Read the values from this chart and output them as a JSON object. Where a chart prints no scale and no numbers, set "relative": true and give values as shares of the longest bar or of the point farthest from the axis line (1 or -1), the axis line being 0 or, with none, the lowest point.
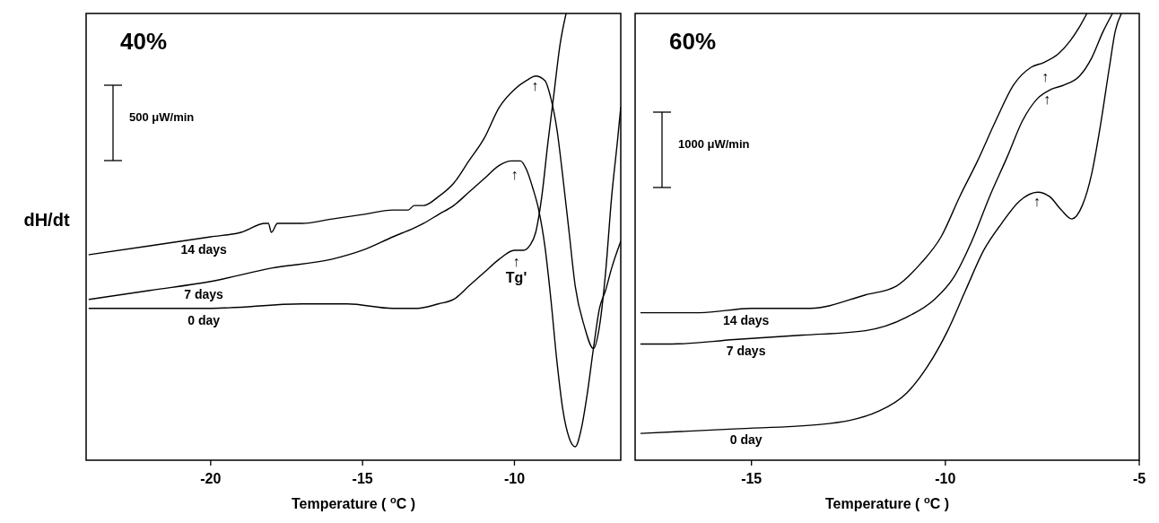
{
  "chart_data": [
    {
      "type": "line",
      "title": "40%",
      "xlabel": "Temperature ( $^{o}$C )",
      "ylabel": "dH/dt",
      "relative": true,
      "xlim": [
        -24.1,
        -6.5
      ],
      "xticks": [
        -20,
        -15,
        -10
      ],
      "annotations": [
        "500 μW/min",
        {
          "text": "↑",
          "x": -9.33,
          "y": 0.86
        },
        {
          "text": "↑",
          "x": -10.0,
          "y": 0.66
        },
        {
          "text": "↑",
          "x": -9.94,
          "y": 0.465
        },
        {
          "text": "Tg'",
          "x": -9.94,
          "y": 0.465
        }
      ],
      "series": [
        {
          "name": "14 days",
          "color": "#000000",
          "x": [
            -24,
            -22,
            -21,
            -20,
            -19,
            -18.2,
            -18.1,
            -18.0,
            -17.8,
            -17,
            -16,
            -15,
            -14,
            -13.5,
            -13.3,
            -13,
            -12.5,
            -12,
            -11.5,
            -11,
            -10.5,
            -10,
            -9.6,
            -9.3,
            -9.0,
            -8.8,
            -8.6,
            -8.4,
            -8.2,
            -8.0,
            -7.7,
            -7.4,
            -7.2,
            -7.0,
            -6.8,
            -6.6,
            -6.5
          ],
          "values": [
            0.46,
            0.48,
            0.49,
            0.5,
            0.51,
            0.53,
            0.53,
            0.51,
            0.53,
            0.53,
            0.54,
            0.55,
            0.56,
            0.56,
            0.57,
            0.57,
            0.59,
            0.62,
            0.67,
            0.72,
            0.79,
            0.83,
            0.85,
            0.86,
            0.85,
            0.81,
            0.74,
            0.63,
            0.51,
            0.39,
            0.3,
            0.25,
            0.3,
            0.42,
            0.59,
            0.72,
            0.79
          ]
        },
        {
          "name": "7 days",
          "color": "#000000",
          "x": [
            -24,
            -22,
            -20,
            -18,
            -16,
            -15,
            -14,
            -13.3,
            -13,
            -12.5,
            -12,
            -11.5,
            -11,
            -10.5,
            -10.1,
            -9.8,
            -9.6,
            -9.4,
            -9.2,
            -9.0,
            -8.8,
            -8.6,
            -8.4,
            -8.2,
            -8.0,
            -7.8,
            -7.6,
            -7.4,
            -7.2,
            -7.0,
            -6.8,
            -6.5
          ],
          "values": [
            0.36,
            0.38,
            0.4,
            0.43,
            0.45,
            0.47,
            0.5,
            0.52,
            0.53,
            0.55,
            0.57,
            0.6,
            0.63,
            0.66,
            0.67,
            0.67,
            0.65,
            0.61,
            0.56,
            0.48,
            0.36,
            0.22,
            0.11,
            0.05,
            0.03,
            0.07,
            0.15,
            0.25,
            0.34,
            0.38,
            0.43,
            0.49
          ]
        },
        {
          "name": "0 day",
          "color": "#000000",
          "x": [
            -24,
            -22,
            -20,
            -17,
            -15.5,
            -14,
            -13.2,
            -12.5,
            -12,
            -11.5,
            -11,
            -10.5,
            -10,
            -9.7,
            -9.5,
            -9.3,
            -9.1,
            -8.9,
            -8.7,
            -8.5,
            -8.3
          ],
          "values": [
            0.34,
            0.34,
            0.34,
            0.35,
            0.35,
            0.34,
            0.34,
            0.35,
            0.36,
            0.39,
            0.42,
            0.45,
            0.47,
            0.47,
            0.48,
            0.51,
            0.59,
            0.71,
            0.82,
            0.93,
            1.0
          ]
        }
      ]
    },
    {
      "type": "line",
      "title": "60%",
      "xlabel": "Temperature ( $^{o}$C )",
      "relative": true,
      "xlim": [
        -18,
        -5
      ],
      "xticks": [
        -15,
        -10,
        -5
      ],
      "annotations": [
        "1000 μW/min",
        {
          "text": "↑",
          "x": -7.43,
          "y": 0.88
        },
        {
          "text": "↑",
          "x": -7.38,
          "y": 0.83
        },
        {
          "text": "↑",
          "x": -7.64,
          "y": 0.6
        }
      ],
      "series": [
        {
          "name": "14 days",
          "color": "#000000",
          "x": [
            -17.85,
            -16.33,
            -15,
            -13.49,
            -12.06,
            -11.26,
            -10.64,
            -10.11,
            -9.63,
            -9.17,
            -8.7,
            -8.24,
            -7.78,
            -7.47,
            -7.08,
            -6.77,
            -6.54,
            -6.35
          ],
          "values": [
            0.33,
            0.33,
            0.34,
            0.34,
            0.37,
            0.39,
            0.44,
            0.5,
            0.59,
            0.67,
            0.76,
            0.84,
            0.88,
            0.89,
            0.91,
            0.94,
            0.97,
            1.0
          ]
        },
        {
          "name": "7 days",
          "color": "#000000",
          "x": [
            -17.85,
            -17.05,
            -15.44,
            -13.67,
            -12.06,
            -11.0,
            -10.28,
            -9.78,
            -9.32,
            -8.86,
            -8.4,
            -8.01,
            -7.62,
            -7.28,
            -6.93,
            -6.54,
            -6.23,
            -5.93,
            -5.69
          ],
          "values": [
            0.26,
            0.26,
            0.27,
            0.28,
            0.29,
            0.32,
            0.36,
            0.41,
            0.49,
            0.59,
            0.68,
            0.76,
            0.81,
            0.83,
            0.84,
            0.86,
            0.9,
            0.96,
            1.0
          ]
        },
        {
          "name": "0 day",
          "color": "#000000",
          "x": [
            -17.85,
            -15.44,
            -13.22,
            -11.71,
            -11.0,
            -10.46,
            -9.94,
            -9.48,
            -9.01,
            -8.55,
            -8.09,
            -7.62,
            -7.31,
            -7.01,
            -6.74,
            -6.47,
            -6.23,
            -6.0,
            -5.77,
            -5.62,
            -5.46
          ],
          "values": [
            0.06,
            0.07,
            0.08,
            0.11,
            0.15,
            0.21,
            0.29,
            0.38,
            0.47,
            0.53,
            0.58,
            0.6,
            0.59,
            0.56,
            0.54,
            0.57,
            0.64,
            0.75,
            0.88,
            0.96,
            1.0
          ]
        }
      ]
    }
  ]
}
